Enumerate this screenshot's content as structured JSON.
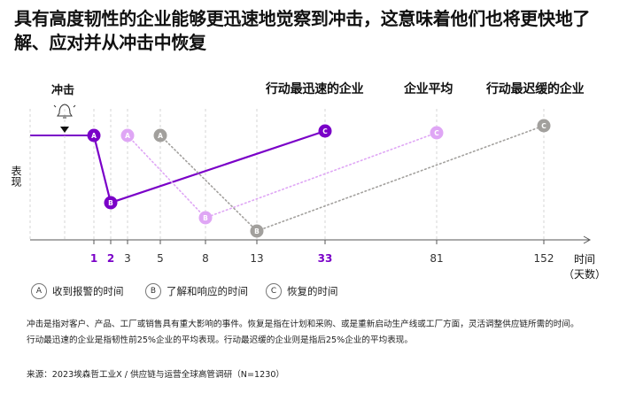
{
  "title": "具有高度韧性的企业能够更迅速地觉察到冲击，这意味着他们也将更快地了解、应对并从冲击中恢复",
  "legend": [
    {
      "label": "行动最迅速的企业",
      "color": "#7a00c8"
    },
    {
      "label": "企业平均",
      "color": "#dfa6f5"
    },
    {
      "label": "行动最迟缓的企业",
      "color": "#a2a09d"
    }
  ],
  "shock_label": "冲击",
  "ylabel": "表现",
  "xlabel_line1": "时间",
  "xlabel_line2": "（天数）",
  "keys": [
    {
      "letter": "A",
      "text": "收到报警的时间"
    },
    {
      "letter": "B",
      "text": "了解和响应的时间"
    },
    {
      "letter": "C",
      "text": "恢复的时间"
    }
  ],
  "notes": [
    "冲击是指对客户、产品、工厂或销售具有重大影响的事件。恢复是指在计划和采购、或是重新启动生产线或工厂方面，灵活调整供应链所需的时间。",
    "行动最迅速的企业是指韧性前25%企业的平均表现。行动最迟缓的企业则是指后25%企业的平均表现。"
  ],
  "source": "来源：2023埃森哲工业X / 供应链与运营全球高管调研（N=1230）",
  "chart_data": {
    "type": "line",
    "x_ticks": [
      "1",
      "2",
      "3",
      "5",
      "8",
      "13",
      "33",
      "81",
      "152"
    ],
    "x_ticks_highlighted": [
      "1",
      "2",
      "33"
    ],
    "series": [
      {
        "name": "行动最迅速的企业",
        "color": "#7a00c8",
        "style": "solid",
        "points": [
          {
            "day": 1,
            "label": "A",
            "level": "baseline"
          },
          {
            "day": 2,
            "label": "B",
            "level": "low"
          },
          {
            "day": 33,
            "label": "C",
            "level": "baseline"
          }
        ]
      },
      {
        "name": "企业平均",
        "color": "#dfa6f5",
        "style": "dotted",
        "points": [
          {
            "day": 3,
            "label": "A",
            "level": "baseline"
          },
          {
            "day": 8,
            "label": "B",
            "level": "low"
          },
          {
            "day": 81,
            "label": "C",
            "level": "baseline"
          }
        ]
      },
      {
        "name": "行动最迟缓的企业",
        "color": "#a2a09d",
        "style": "dotted",
        "points": [
          {
            "day": 5,
            "label": "A",
            "level": "baseline"
          },
          {
            "day": 13,
            "label": "B",
            "level": "low"
          },
          {
            "day": 152,
            "label": "C",
            "level": "baseline"
          }
        ]
      }
    ]
  }
}
